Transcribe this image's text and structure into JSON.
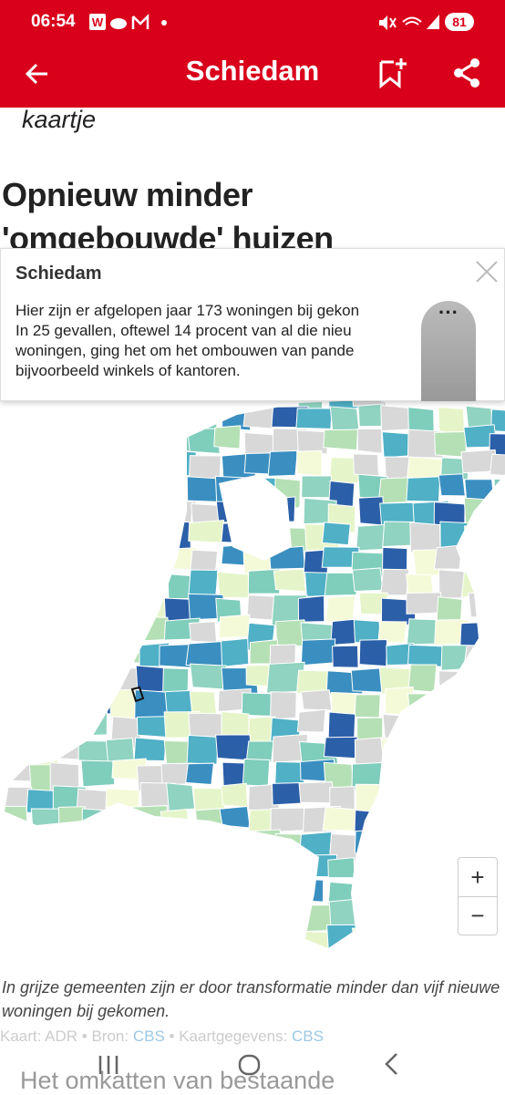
{
  "status_bar": {
    "time": "06:54",
    "battery": "81"
  },
  "header": {
    "title": "Schiedam"
  },
  "article": {
    "label": "kaartje",
    "headline": [
      "Opnieuw minder",
      "'omgebouwde' huizen"
    ]
  },
  "popup": {
    "title": "Schiedam",
    "lines": [
      "Hier zijn er afgelopen jaar 173 woningen bij gekon",
      "In 25 gevallen, oftewel 14 procent van al die nieu",
      "woningen, ging het om het ombouwen van pande",
      "bijvoorbeeld winkels of kantoren."
    ]
  },
  "zoom": {
    "in": "+",
    "out": "−"
  },
  "caption": "In grijze gemeenten zijn er door transformatie minder dan vijf nieuwe woningen bij gekomen.",
  "credits": {
    "map": "Kaart: ADR",
    "source_label": "Bron:",
    "source": "CBS",
    "data_label": "Kaartgegevens:",
    "data": "CBS"
  },
  "next_text": "Het omkatten van bestaande"
}
